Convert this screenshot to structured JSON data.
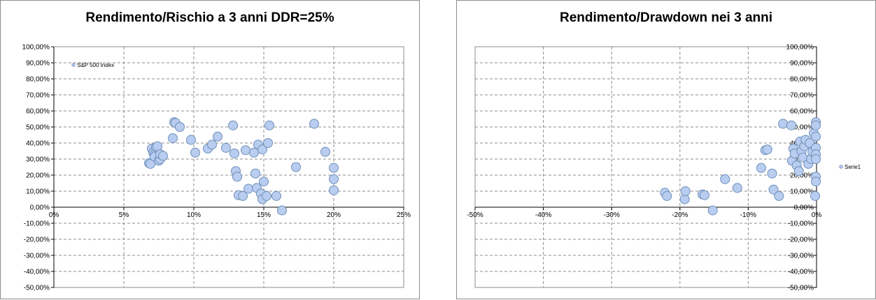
{
  "chart_data": [
    {
      "type": "scatter",
      "title": "Rendimento/Rischio a 3 anni DDR=25%",
      "xlabel": "",
      "ylabel": "",
      "xlim": [
        0,
        0.25
      ],
      "ylim": [
        -0.5,
        1.0
      ],
      "x_ticks": [
        "0%",
        "5%",
        "10%",
        "15%",
        "20%",
        "25%"
      ],
      "y_ticks": [
        "100,00%",
        "90,00%",
        "80,00%",
        "70,00%",
        "60,00%",
        "50,00%",
        "40,00%",
        "30,00%",
        "20,00%",
        "10,00%",
        "0,00%",
        "-10,00%",
        "-20,00%",
        "-30,00%",
        "-40,00%",
        "-50,00%"
      ],
      "grid": true,
      "legend_position": "top-left",
      "series": [
        {
          "name": "S&P 500 Index",
          "points": [
            [
              0.068,
              0.275
            ],
            [
              0.069,
              0.27
            ],
            [
              0.07,
              0.365
            ],
            [
              0.071,
              0.34
            ],
            [
              0.072,
              0.33
            ],
            [
              0.072,
              0.315
            ],
            [
              0.073,
              0.375
            ],
            [
              0.074,
              0.38
            ],
            [
              0.075,
              0.29
            ],
            [
              0.076,
              0.3
            ],
            [
              0.076,
              0.33
            ],
            [
              0.078,
              0.32
            ],
            [
              0.085,
              0.43
            ],
            [
              0.086,
              0.53
            ],
            [
              0.087,
              0.525
            ],
            [
              0.09,
              0.5
            ],
            [
              0.098,
              0.42
            ],
            [
              0.101,
              0.34
            ],
            [
              0.11,
              0.365
            ],
            [
              0.113,
              0.39
            ],
            [
              0.117,
              0.44
            ],
            [
              0.123,
              0.37
            ],
            [
              0.128,
              0.51
            ],
            [
              0.129,
              0.335
            ],
            [
              0.13,
              0.225
            ],
            [
              0.131,
              0.19
            ],
            [
              0.132,
              0.075
            ],
            [
              0.135,
              0.07
            ],
            [
              0.137,
              0.355
            ],
            [
              0.139,
              0.115
            ],
            [
              0.143,
              0.34
            ],
            [
              0.144,
              0.21
            ],
            [
              0.145,
              0.12
            ],
            [
              0.146,
              0.39
            ],
            [
              0.148,
              0.085
            ],
            [
              0.149,
              0.05
            ],
            [
              0.149,
              0.36
            ],
            [
              0.15,
              0.16
            ],
            [
              0.152,
              0.07
            ],
            [
              0.153,
              0.4
            ],
            [
              0.154,
              0.51
            ],
            [
              0.159,
              0.07
            ],
            [
              0.163,
              -0.02
            ],
            [
              0.173,
              0.25
            ],
            [
              0.186,
              0.52
            ],
            [
              0.194,
              0.345
            ],
            [
              0.2,
              0.245
            ],
            [
              0.2,
              0.175
            ],
            [
              0.2,
              0.105
            ]
          ]
        }
      ]
    },
    {
      "type": "scatter",
      "title": "Rendimento/Drawdown nei 3 anni",
      "xlabel": "",
      "ylabel": "",
      "xlim": [
        -0.5,
        0
      ],
      "ylim": [
        -0.5,
        1.0
      ],
      "x_ticks": [
        "-50%",
        "-40%",
        "-30%",
        "-20%",
        "-10%",
        "0%"
      ],
      "y_ticks": [
        "100,00%",
        "90,00%",
        "80,00%",
        "70,00%",
        "60,00%",
        "50,00%",
        "40,00%",
        "30,00%",
        "20,00%",
        "10,00%",
        "0,00%",
        "-10,00%",
        "-20,00%",
        "-30,00%",
        "-40,00%",
        "-50,00%"
      ],
      "grid": true,
      "legend_position": "right",
      "series": [
        {
          "name": "Serie1",
          "points": [
            [
              -0.222,
              0.09
            ],
            [
              -0.219,
              0.07
            ],
            [
              -0.193,
              0.05
            ],
            [
              -0.192,
              0.1
            ],
            [
              -0.167,
              0.08
            ],
            [
              -0.164,
              0.075
            ],
            [
              -0.152,
              -0.02
            ],
            [
              -0.134,
              0.175
            ],
            [
              -0.116,
              0.12
            ],
            [
              -0.081,
              0.245
            ],
            [
              -0.075,
              0.355
            ],
            [
              -0.072,
              0.36
            ],
            [
              -0.065,
              0.21
            ],
            [
              -0.063,
              0.11
            ],
            [
              -0.055,
              0.07
            ],
            [
              -0.049,
              0.52
            ],
            [
              -0.037,
              0.51
            ],
            [
              -0.036,
              0.29
            ],
            [
              -0.034,
              0.365
            ],
            [
              -0.032,
              0.335
            ],
            [
              -0.029,
              0.26
            ],
            [
              -0.026,
              0.225
            ],
            [
              -0.024,
              0.41
            ],
            [
              -0.022,
              0.35
            ],
            [
              -0.02,
              0.31
            ],
            [
              -0.018,
              0.38
            ],
            [
              -0.016,
              0.42
            ],
            [
              -0.012,
              0.27
            ],
            [
              -0.01,
              0.4
            ],
            [
              -0.008,
              0.3
            ],
            [
              -0.006,
              0.345
            ],
            [
              -0.004,
              0.46
            ],
            [
              -0.002,
              0.07
            ],
            [
              -0.001,
              0.53
            ],
            [
              -0.001,
              0.51
            ],
            [
              -0.001,
              0.44
            ],
            [
              -0.001,
              0.37
            ],
            [
              -0.001,
              0.33
            ],
            [
              -0.001,
              0.3
            ],
            [
              -0.001,
              0.19
            ],
            [
              -0.001,
              0.16
            ]
          ]
        }
      ]
    }
  ]
}
